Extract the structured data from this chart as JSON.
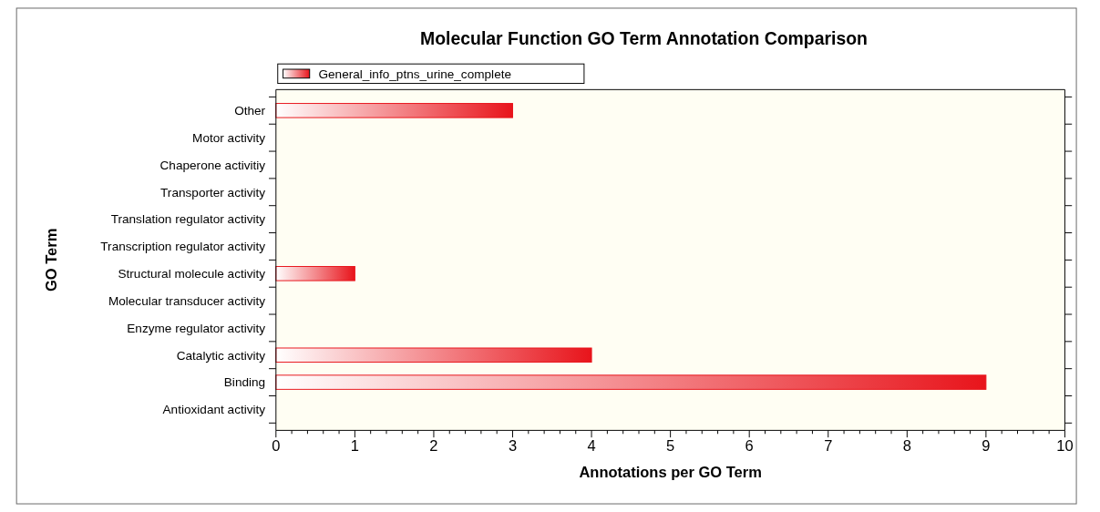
{
  "chart_data": {
    "type": "bar",
    "orientation": "horizontal",
    "title": "Molecular Function GO Term Annotation Comparison",
    "xlabel": "Annotations per GO Term",
    "ylabel": "GO Term",
    "categories": [
      "Other",
      "Motor activity",
      "Chaperone activitiy",
      "Transporter activity",
      "Translation regulator activity",
      "Transcription regulator activity",
      "Structural molecule activity",
      "Molecular transducer activity",
      "Enzyme regulator activity",
      "Catalytic activity",
      "Binding",
      "Antioxidant activity"
    ],
    "series": [
      {
        "name": "General_info_ptns_urine_complete",
        "color": "#e8141b",
        "values": [
          3,
          0,
          0,
          0,
          0,
          0,
          1,
          0,
          0,
          4,
          9,
          0
        ]
      }
    ],
    "xlim": [
      0,
      10
    ],
    "xticks": [
      0,
      1,
      2,
      3,
      4,
      5,
      6,
      7,
      8,
      9,
      10
    ],
    "legend": "top left",
    "grid": false
  }
}
